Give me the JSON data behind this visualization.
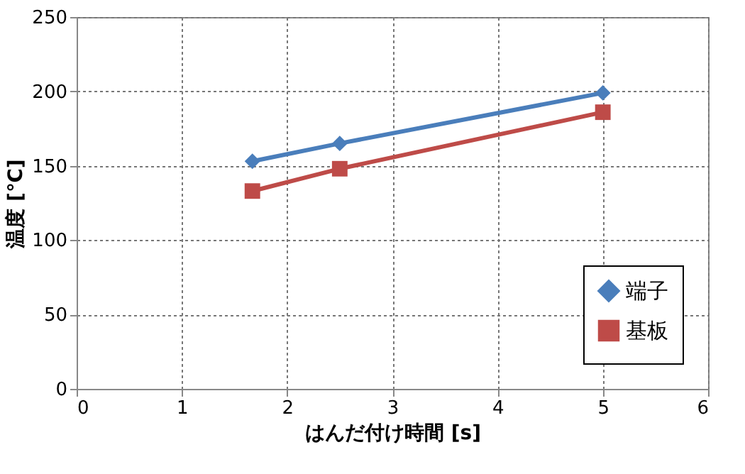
{
  "chart_data": {
    "type": "line",
    "xlabel": "はんだ付け時間 [s]",
    "ylabel": "温度 [℃]",
    "xlim": [
      0,
      6
    ],
    "xticks": [
      0,
      1,
      2,
      3,
      4,
      5,
      6
    ],
    "ylim": [
      0,
      250
    ],
    "yticks": [
      0,
      50,
      100,
      150,
      200,
      250
    ],
    "grid": true,
    "legend": "bottom right",
    "line_style": "solid",
    "series": [
      {
        "name": "端子",
        "color": "#4a7ebb",
        "marker": "diamond",
        "x": [
          1.67,
          2.5,
          5
        ],
        "values": [
          153,
          165,
          199
        ]
      },
      {
        "name": "基板",
        "color": "#be4b48",
        "marker": "square",
        "x": [
          1.67,
          2.5,
          5
        ],
        "values": [
          133,
          148,
          186
        ]
      }
    ]
  }
}
